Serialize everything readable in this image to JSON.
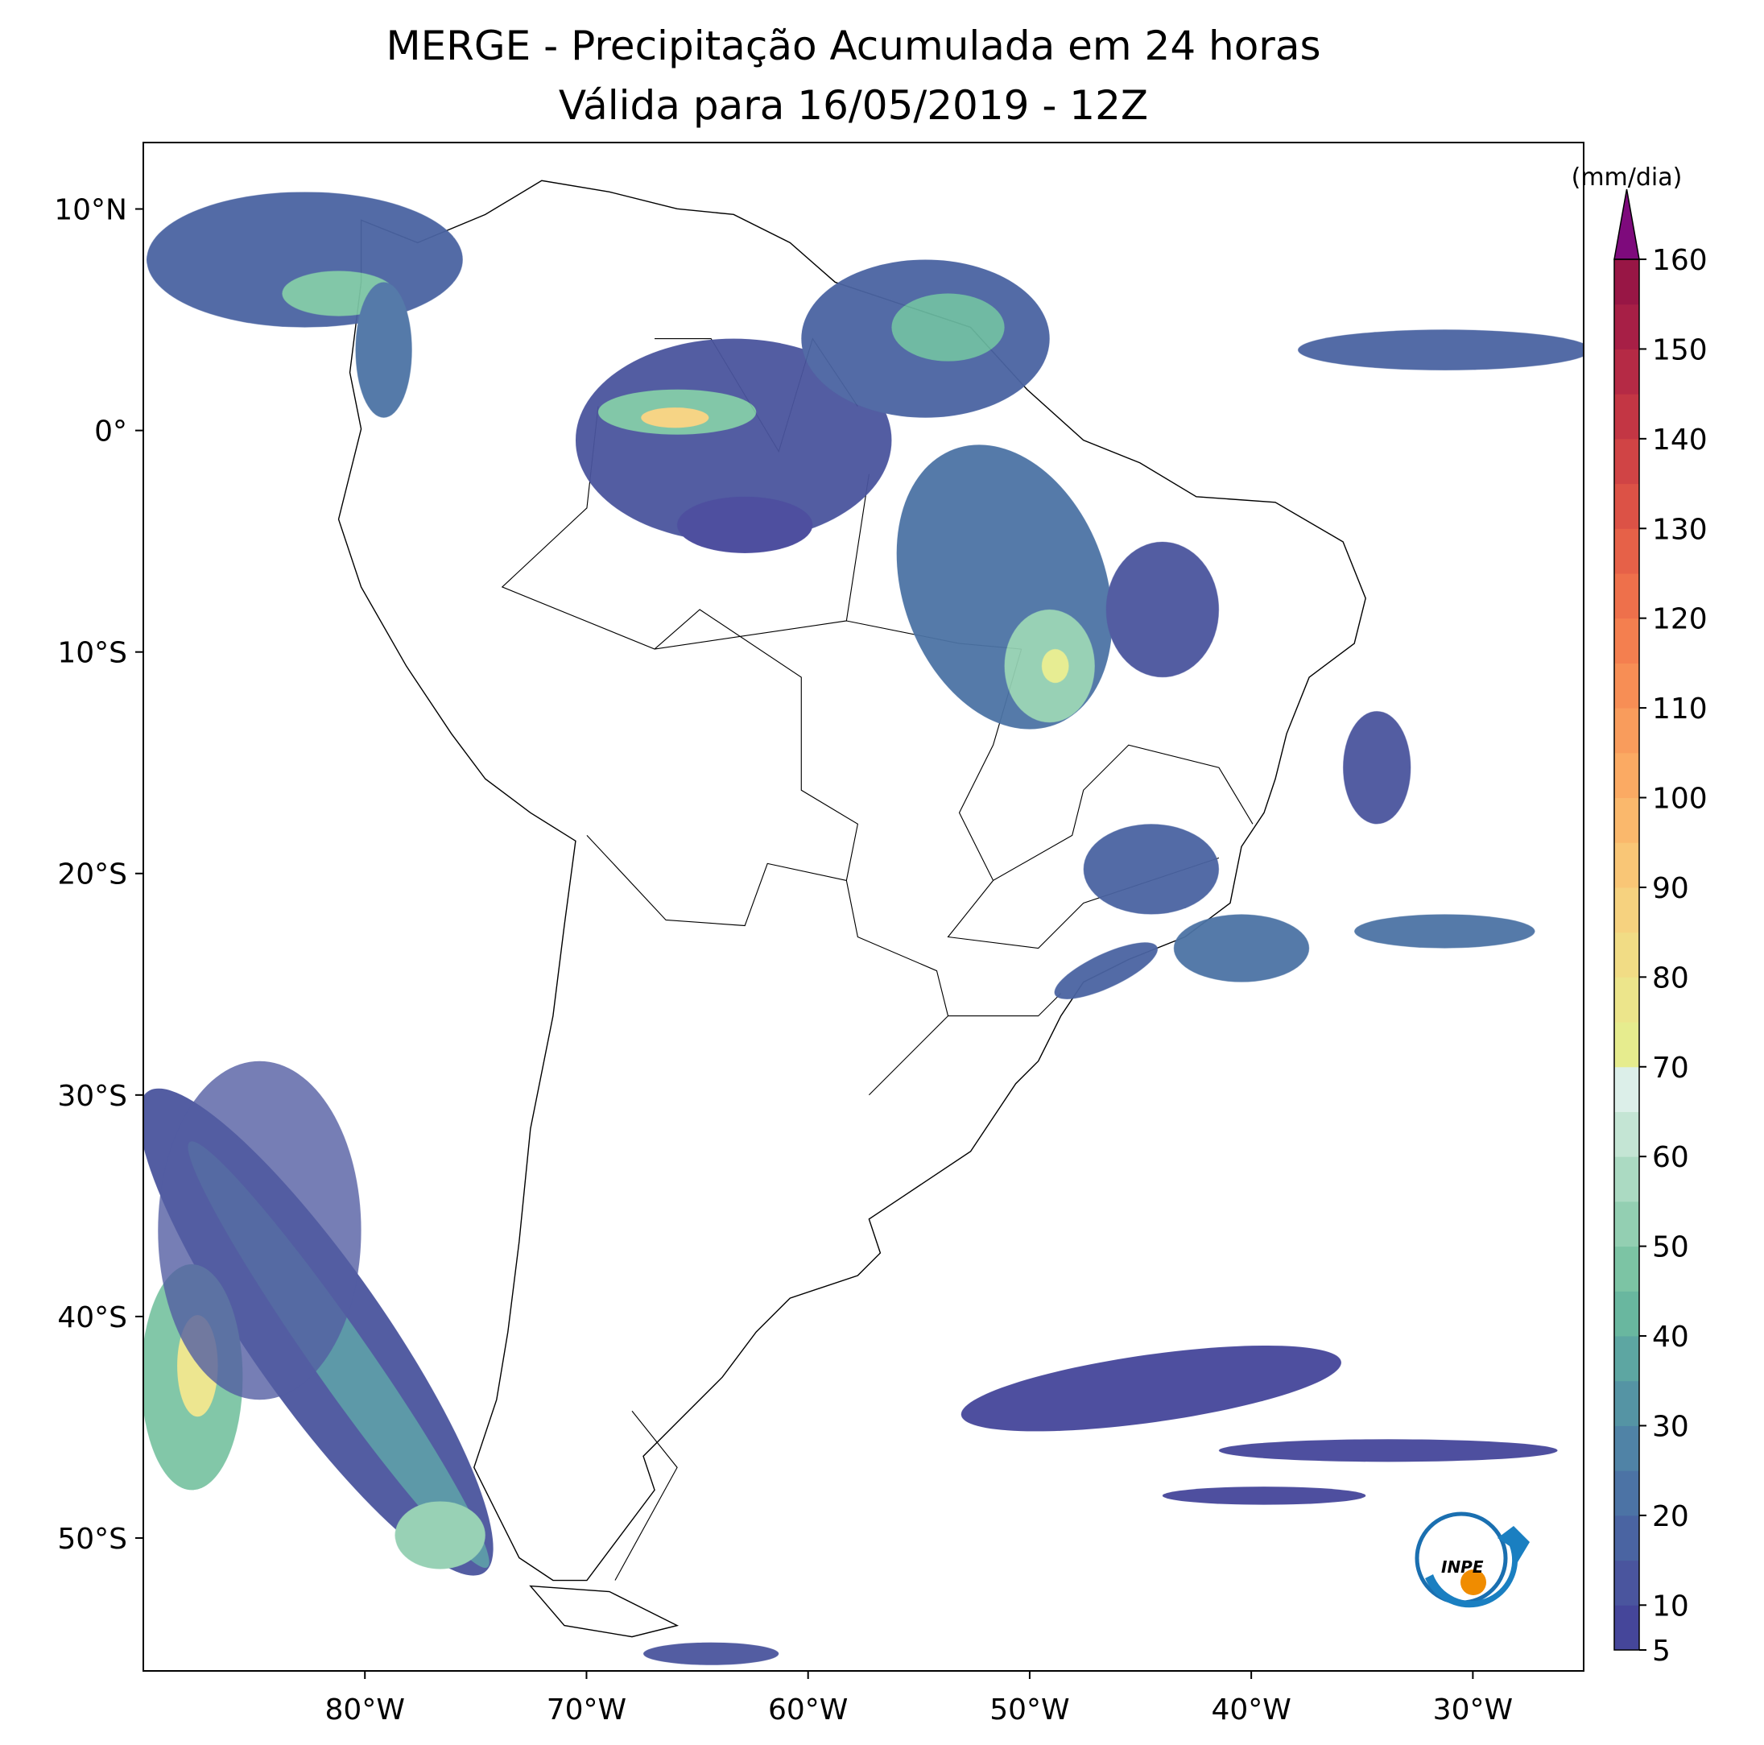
{
  "title": [
    "MERGE - Precipitação Acumulada em 24 horas",
    "Válida para 16/05/2019 - 12Z"
  ],
  "xlim": [
    -90,
    -25
  ],
  "ylim": [
    -56,
    13
  ],
  "lon_ticks": [
    {
      "value": -80,
      "label": "80°W"
    },
    {
      "value": -70,
      "label": "70°W"
    },
    {
      "value": -60,
      "label": "60°W"
    },
    {
      "value": -50,
      "label": "50°W"
    },
    {
      "value": -40,
      "label": "40°W"
    },
    {
      "value": -30,
      "label": "30°W"
    }
  ],
  "lat_ticks": [
    {
      "value": 10,
      "label": "10°N"
    },
    {
      "value": 0,
      "label": "0°"
    },
    {
      "value": -10,
      "label": "10°S"
    },
    {
      "value": -20,
      "label": "20°S"
    },
    {
      "value": -30,
      "label": "30°S"
    },
    {
      "value": -40,
      "label": "40°S"
    },
    {
      "value": -50,
      "label": "50°S"
    }
  ],
  "colorbar": {
    "label": "(mm/dia)",
    "extend": "max",
    "extend_color": "#7e0a7c",
    "levels": [
      5,
      10,
      15,
      20,
      25,
      30,
      35,
      40,
      45,
      50,
      55,
      60,
      65,
      70,
      75,
      80,
      85,
      90,
      95,
      100,
      105,
      110,
      115,
      120,
      125,
      130,
      135,
      140,
      145,
      150,
      155,
      160
    ],
    "colors": [
      "#45469a",
      "#4a559e",
      "#4a64a2",
      "#4c73a5",
      "#5083a6",
      "#5594a4",
      "#5da6a2",
      "#69b79f",
      "#7cc4a4",
      "#93cfb2",
      "#abdac2",
      "#c4e5d4",
      "#dcefe9",
      "#e6ec8e",
      "#ece58b",
      "#f1dc85",
      "#f6d27f",
      "#f9c676",
      "#fab86c",
      "#fbaa63",
      "#f99c5c",
      "#f78e55",
      "#f47f4f",
      "#ee704b",
      "#e66148",
      "#dc5246",
      "#d04445",
      "#c33644",
      "#b52a45",
      "#a71f46",
      "#981645"
    ],
    "ticks": [
      5,
      10,
      20,
      30,
      40,
      50,
      60,
      70,
      80,
      90,
      100,
      110,
      120,
      130,
      140,
      150,
      160
    ]
  },
  "logo": "INPE"
}
